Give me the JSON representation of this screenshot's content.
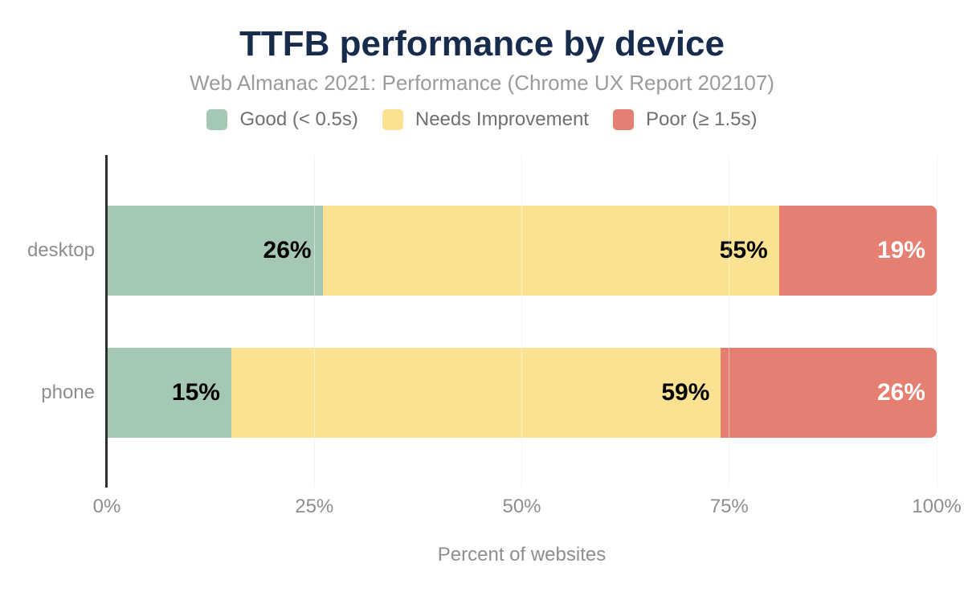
{
  "chart_data": {
    "type": "bar",
    "orientation": "horizontal",
    "stacked": true,
    "title": "TTFB performance by device",
    "subtitle": "Web Almanac 2021: Performance (Chrome UX Report 202107)",
    "xlabel": "Percent of websites",
    "categories": [
      "desktop",
      "phone"
    ],
    "series": [
      {
        "name": "Good (< 0.5s)",
        "color": "#a5c8b4",
        "label_color": "#000000",
        "values": [
          26,
          15
        ]
      },
      {
        "name": "Needs Improvement",
        "color": "#fbe292",
        "label_color": "#000000",
        "values": [
          55,
          59
        ]
      },
      {
        "name": "Poor (≥ 1.5s)",
        "color": "#e57f72",
        "label_color": "#ffffff",
        "values": [
          19,
          26
        ]
      }
    ],
    "x_ticks": [
      "0%",
      "25%",
      "50%",
      "75%",
      "100%"
    ],
    "xlim": [
      0,
      100
    ],
    "value_label_format": "{value}%",
    "legend_position": "top",
    "grid": "vertical",
    "colors": {
      "title": "#172b4d",
      "subtitle": "#9b9b9b",
      "legend_text": "#6e7073",
      "axis_text": "#8b8e92",
      "axis_line": "#2f2f2f",
      "gridline": "#e8e8e8"
    }
  }
}
